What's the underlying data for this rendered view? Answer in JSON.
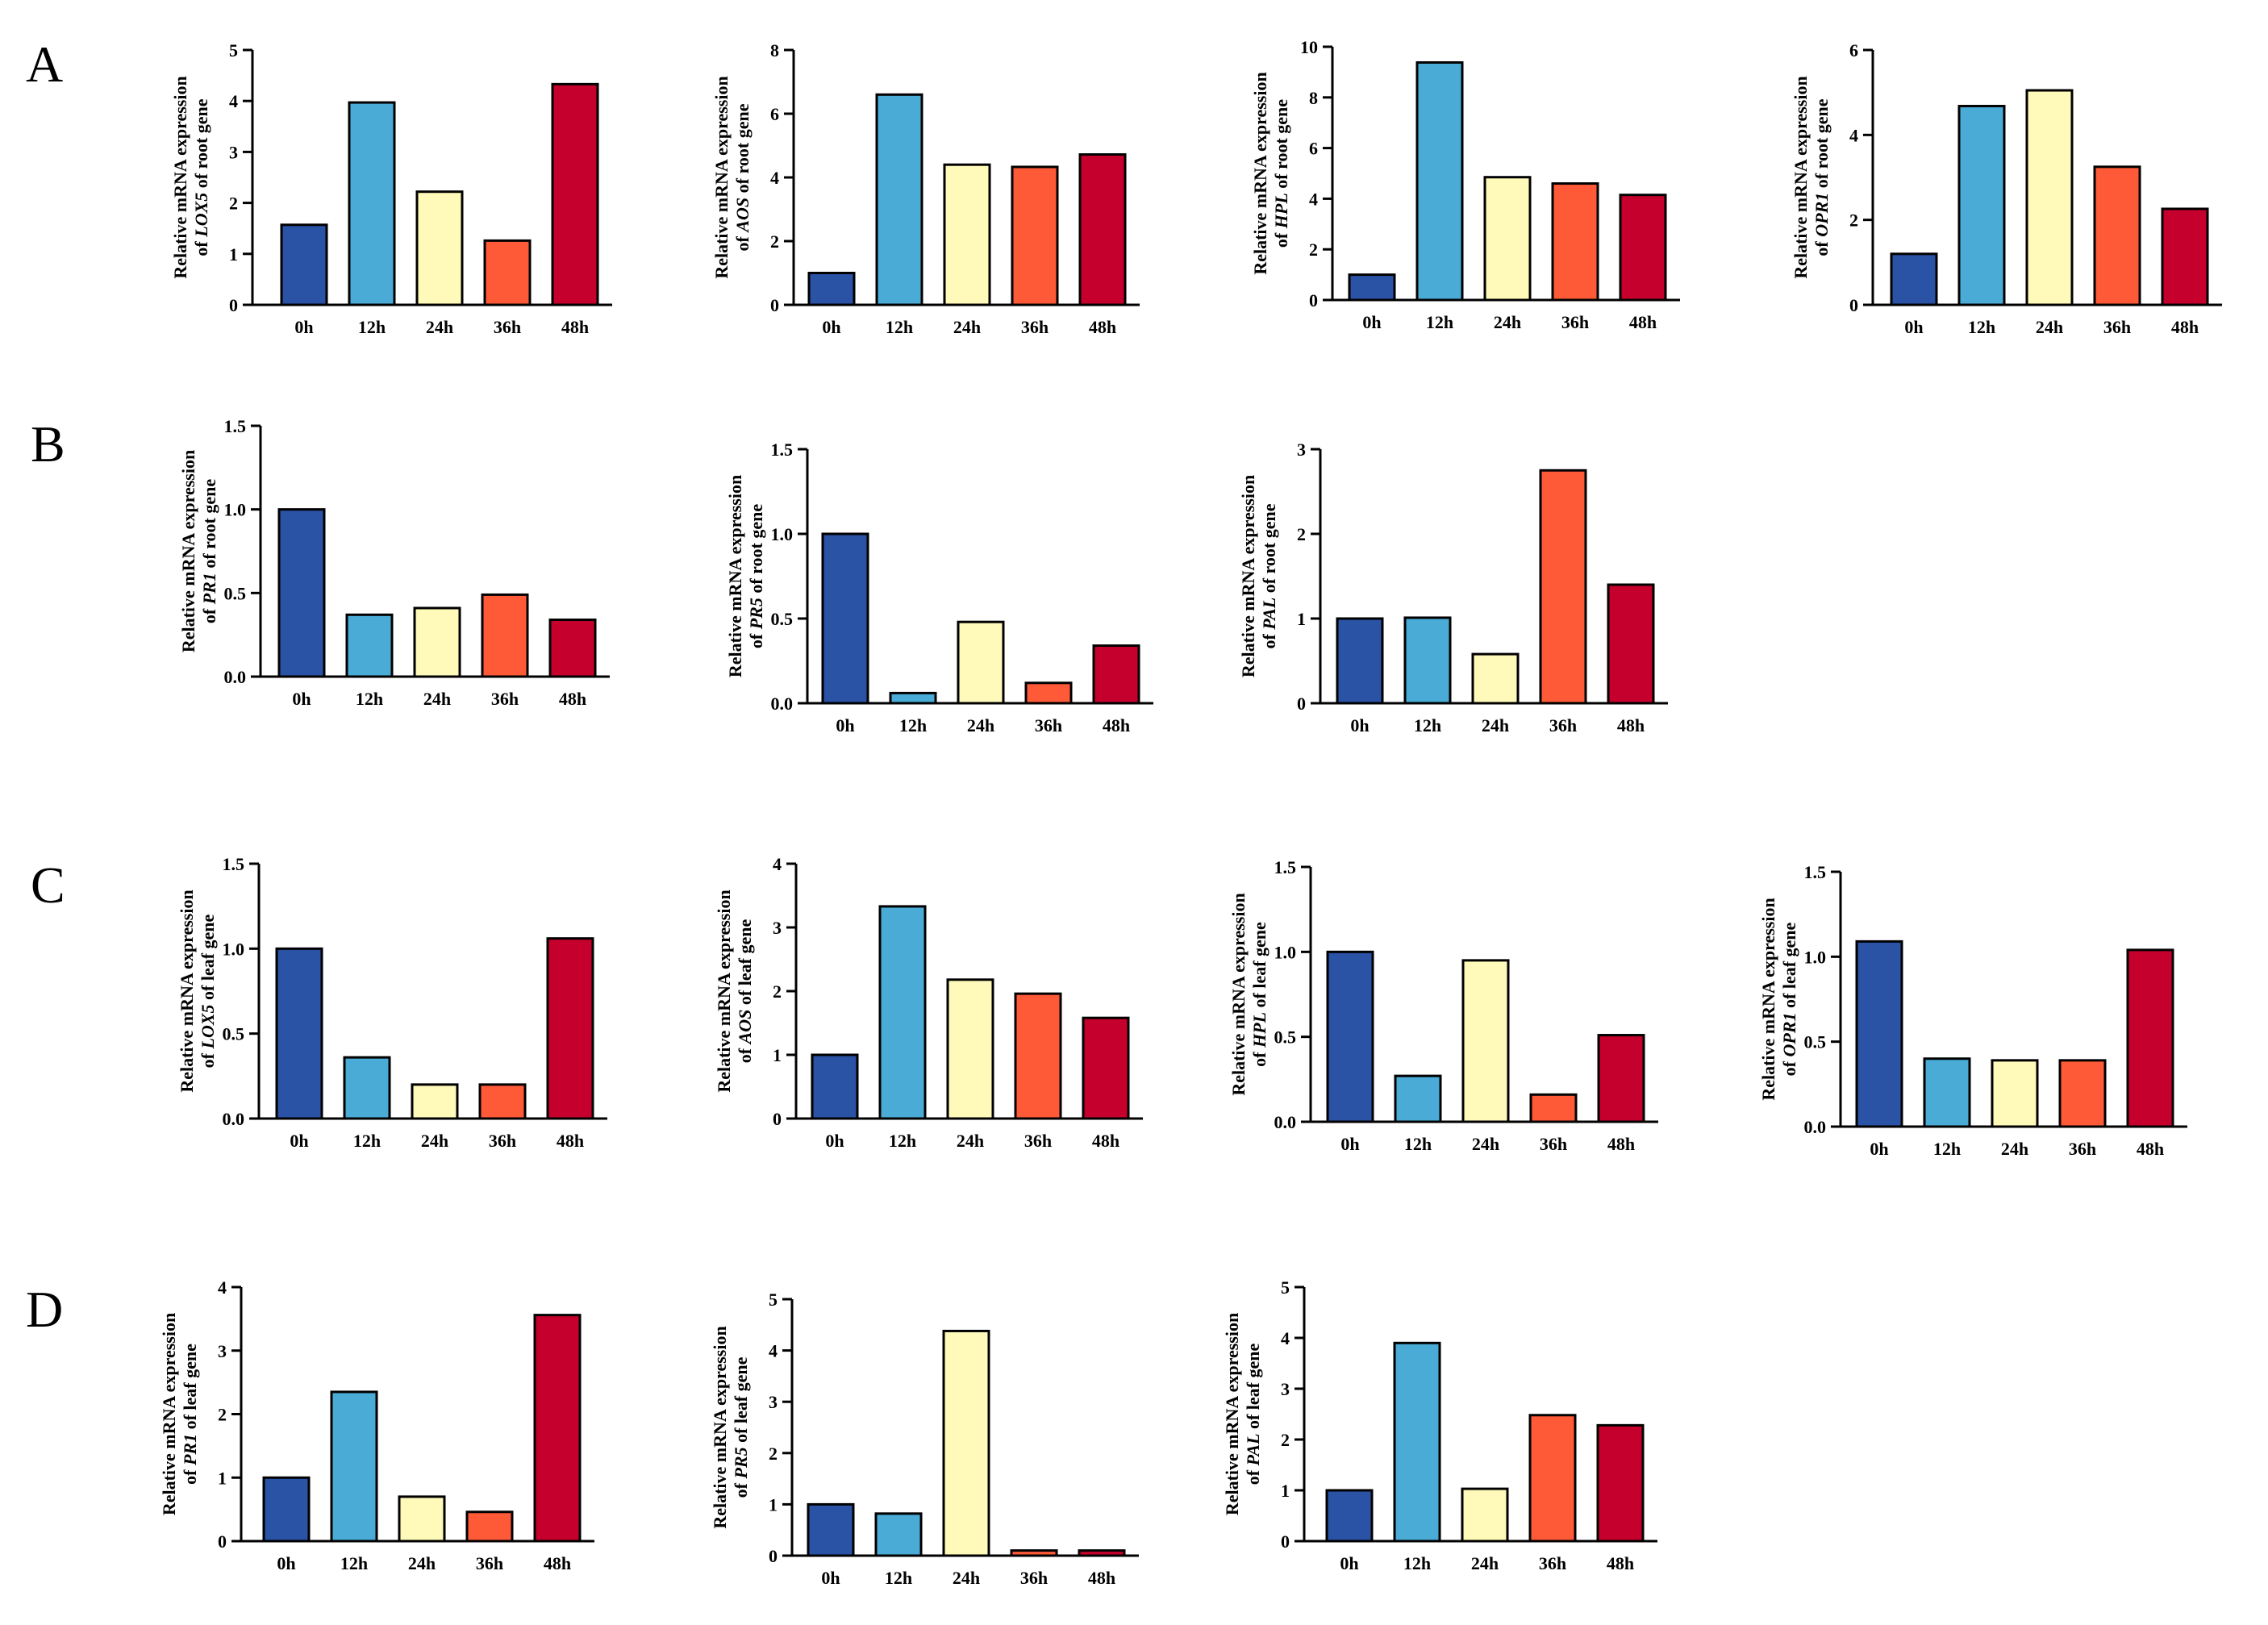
{
  "colors": [
    "#2A52A5",
    "#4AABD6",
    "#FFFAB9",
    "#FF5A38",
    "#C6002C"
  ],
  "categories": [
    "0h",
    "12h",
    "24h",
    "36h",
    "48h"
  ],
  "panels": [
    {
      "letter": "A"
    },
    {
      "letter": "B"
    },
    {
      "letter": "C"
    },
    {
      "letter": "D"
    }
  ],
  "chart_data": [
    {
      "type": "bar",
      "panel": "A",
      "gene": "LOX5",
      "tissue": "root",
      "ylabel_line1": "Relative mRNA expression",
      "ylabel_pre": "of ",
      "ylabel_post": " of root gene",
      "categories": [
        "0h",
        "12h",
        "24h",
        "36h",
        "48h"
      ],
      "values": [
        1.57,
        3.97,
        2.22,
        1.26,
        4.33
      ],
      "ylim": [
        0,
        5
      ],
      "yticks": [
        "0",
        "1",
        "2",
        "3",
        "4",
        "5"
      ]
    },
    {
      "type": "bar",
      "panel": "A",
      "gene": "AOS",
      "tissue": "root",
      "ylabel_line1": "Relative mRNA expression",
      "ylabel_pre": "of ",
      "ylabel_post": " of root gene",
      "categories": [
        "0h",
        "12h",
        "24h",
        "36h",
        "48h"
      ],
      "values": [
        1.0,
        6.6,
        4.4,
        4.33,
        4.72
      ],
      "ylim": [
        0,
        8
      ],
      "yticks": [
        "0",
        "2",
        "4",
        "6",
        "8"
      ]
    },
    {
      "type": "bar",
      "panel": "A",
      "gene": "HPL",
      "tissue": "root",
      "ylabel_line1": "Relative mRNA expression",
      "ylabel_pre": "of ",
      "ylabel_post": " of root gene",
      "categories": [
        "0h",
        "12h",
        "24h",
        "36h",
        "48h"
      ],
      "values": [
        1.0,
        9.38,
        4.85,
        4.6,
        4.15
      ],
      "ylim": [
        0,
        10
      ],
      "yticks": [
        "0",
        "2",
        "4",
        "6",
        "8",
        "10"
      ]
    },
    {
      "type": "bar",
      "panel": "A",
      "gene": "OPR1",
      "tissue": "root",
      "ylabel_line1": "Relative mRNA expression",
      "ylabel_pre": "of ",
      "ylabel_post": " of root gene",
      "categories": [
        "0h",
        "12h",
        "24h",
        "36h",
        "48h"
      ],
      "values": [
        1.2,
        4.68,
        5.05,
        3.25,
        2.26
      ],
      "ylim": [
        0,
        6
      ],
      "yticks": [
        "0",
        "2",
        "4",
        "6"
      ]
    },
    {
      "type": "bar",
      "panel": "B",
      "gene": "PR1",
      "tissue": "root",
      "ylabel_line1": "Relative mRNA expression",
      "ylabel_pre": "of ",
      "ylabel_post": " of root gene",
      "categories": [
        "0h",
        "12h",
        "24h",
        "36h",
        "48h"
      ],
      "values": [
        1.0,
        0.37,
        0.41,
        0.49,
        0.34
      ],
      "ylim": [
        0,
        1.5
      ],
      "yticks": [
        "0.0",
        "0.5",
        "1.0",
        "1.5"
      ]
    },
    {
      "type": "bar",
      "panel": "B",
      "gene": "PR5",
      "tissue": "root",
      "ylabel_line1": "Relative mRNA expression",
      "ylabel_pre": "of ",
      "ylabel_post": " of root gene",
      "categories": [
        "0h",
        "12h",
        "24h",
        "36h",
        "48h"
      ],
      "values": [
        1.0,
        0.06,
        0.48,
        0.12,
        0.34
      ],
      "ylim": [
        0,
        1.5
      ],
      "yticks": [
        "0.0",
        "0.5",
        "1.0",
        "1.5"
      ]
    },
    {
      "type": "bar",
      "panel": "B",
      "gene": "PAL",
      "tissue": "root",
      "ylabel_line1": "Relative mRNA expression",
      "ylabel_pre": "of ",
      "ylabel_post": " of root gene",
      "categories": [
        "0h",
        "12h",
        "24h",
        "36h",
        "48h"
      ],
      "values": [
        1.0,
        1.01,
        0.58,
        2.75,
        1.4
      ],
      "ylim": [
        0,
        3
      ],
      "yticks": [
        "0",
        "1",
        "2",
        "3"
      ]
    },
    {
      "type": "bar",
      "panel": "C",
      "gene": "LOX5",
      "tissue": "leaf",
      "ylabel_line1": "Relative mRNA expression",
      "ylabel_pre": "of ",
      "ylabel_post": " of leaf gene",
      "categories": [
        "0h",
        "12h",
        "24h",
        "36h",
        "48h"
      ],
      "values": [
        1.0,
        0.36,
        0.2,
        0.2,
        1.06
      ],
      "ylim": [
        0,
        1.5
      ],
      "yticks": [
        "0.0",
        "0.5",
        "1.0",
        "1.5"
      ]
    },
    {
      "type": "bar",
      "panel": "C",
      "gene": "AOS",
      "tissue": "leaf",
      "ylabel_line1": "Relative mRNA expression",
      "ylabel_pre": "of ",
      "ylabel_post": " of leaf gene",
      "categories": [
        "0h",
        "12h",
        "24h",
        "36h",
        "48h"
      ],
      "values": [
        1.0,
        3.33,
        2.18,
        1.96,
        1.58
      ],
      "ylim": [
        0,
        4
      ],
      "yticks": [
        "0",
        "1",
        "2",
        "3",
        "4"
      ]
    },
    {
      "type": "bar",
      "panel": "C",
      "gene": "HPL",
      "tissue": "leaf",
      "ylabel_line1": "Relative mRNA expression",
      "ylabel_pre": "of ",
      "ylabel_post": " of leaf gene",
      "categories": [
        "0h",
        "12h",
        "24h",
        "36h",
        "48h"
      ],
      "values": [
        1.0,
        0.27,
        0.95,
        0.16,
        0.51
      ],
      "ylim": [
        0,
        1.5
      ],
      "yticks": [
        "0.0",
        "0.5",
        "1.0",
        "1.5"
      ]
    },
    {
      "type": "bar",
      "panel": "C",
      "gene": "OPR1",
      "tissue": "leaf",
      "ylabel_line1": "Relative mRNA expression",
      "ylabel_pre": "of ",
      "ylabel_post": " of leaf gene",
      "categories": [
        "0h",
        "12h",
        "24h",
        "36h",
        "48h"
      ],
      "values": [
        1.09,
        0.4,
        0.39,
        0.39,
        1.04
      ],
      "ylim": [
        0,
        1.5
      ],
      "yticks": [
        "0.0",
        "0.5",
        "1.0",
        "1.5"
      ]
    },
    {
      "type": "bar",
      "panel": "D",
      "gene": "PR1",
      "tissue": "leaf",
      "ylabel_line1": "Relative mRNA expression",
      "ylabel_pre": "of ",
      "ylabel_post": " of leaf gene",
      "categories": [
        "0h",
        "12h",
        "24h",
        "36h",
        "48h"
      ],
      "values": [
        1.0,
        2.35,
        0.7,
        0.46,
        3.56
      ],
      "ylim": [
        0,
        4
      ],
      "yticks": [
        "0",
        "1",
        "2",
        "3",
        "4"
      ]
    },
    {
      "type": "bar",
      "panel": "D",
      "gene": "PR5",
      "tissue": "leaf",
      "ylabel_line1": "Relative mRNA expression",
      "ylabel_pre": "of ",
      "ylabel_post": " of leaf gene",
      "categories": [
        "0h",
        "12h",
        "24h",
        "36h",
        "48h"
      ],
      "values": [
        1.0,
        0.82,
        4.38,
        0.1,
        0.1
      ],
      "ylim": [
        0,
        5
      ],
      "yticks": [
        "0",
        "1",
        "2",
        "3",
        "4",
        "5"
      ]
    },
    {
      "type": "bar",
      "panel": "D",
      "gene": "PAL",
      "tissue": "leaf",
      "ylabel_line1": "Relative mRNA expression",
      "ylabel_pre": "of ",
      "ylabel_post": " of leaf gene",
      "categories": [
        "0h",
        "12h",
        "24h",
        "36h",
        "48h"
      ],
      "values": [
        1.0,
        3.9,
        1.03,
        2.48,
        2.28
      ],
      "ylim": [
        0,
        5
      ],
      "yticks": [
        "0",
        "1",
        "2",
        "3",
        "4",
        "5"
      ]
    }
  ]
}
